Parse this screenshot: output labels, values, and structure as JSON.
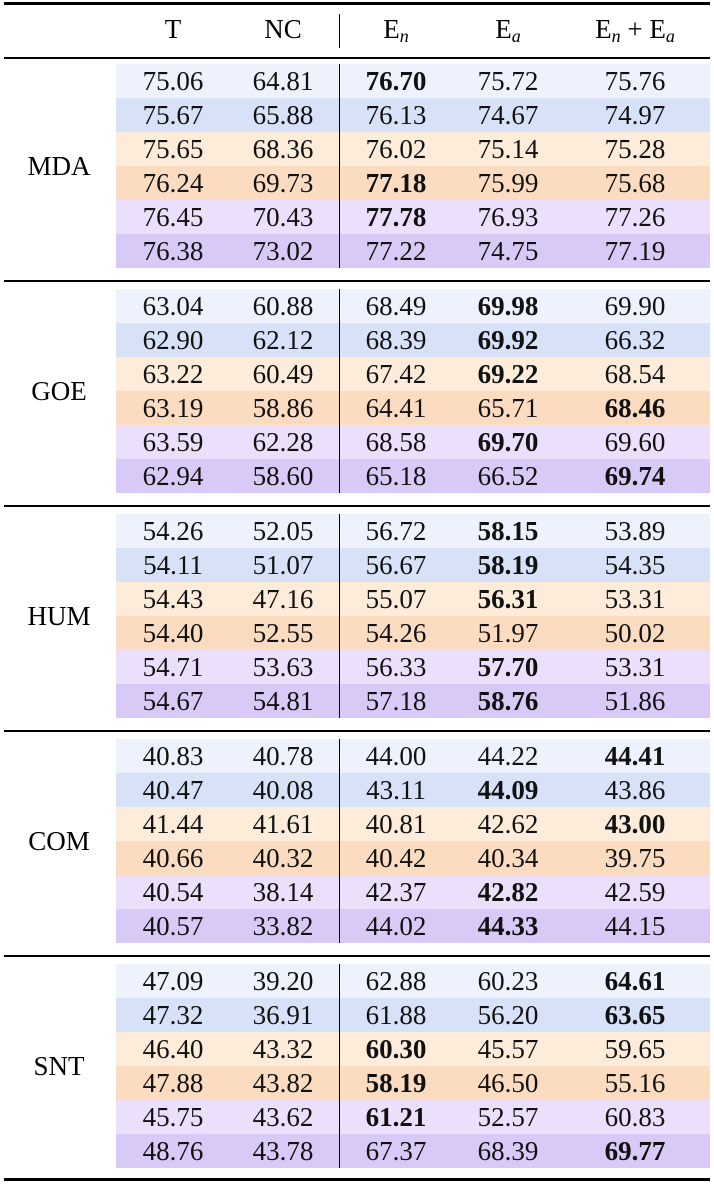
{
  "table": {
    "columns": [
      {
        "text": "T"
      },
      {
        "text": "NC"
      },
      {
        "text": "E",
        "sub": "n"
      },
      {
        "text": "E",
        "sub": "a"
      },
      {
        "text": "E",
        "sub": "n",
        "text2": " + E",
        "sub2": "a"
      }
    ],
    "row_colors": [
      "#eef2fd",
      "#d7e2f9",
      "#fdecda",
      "#fbdcc1",
      "#ecdffb",
      "#d9c9f6"
    ],
    "groups": [
      {
        "label": "MDA",
        "rows": [
          {
            "cells": [
              "75.06",
              "64.81",
              "76.70",
              "75.72",
              "75.76"
            ],
            "bold": [
              2
            ]
          },
          {
            "cells": [
              "75.67",
              "65.88",
              "76.13",
              "74.67",
              "74.97"
            ],
            "bold": []
          },
          {
            "cells": [
              "75.65",
              "68.36",
              "76.02",
              "75.14",
              "75.28"
            ],
            "bold": []
          },
          {
            "cells": [
              "76.24",
              "69.73",
              "77.18",
              "75.99",
              "75.68"
            ],
            "bold": [
              2
            ]
          },
          {
            "cells": [
              "76.45",
              "70.43",
              "77.78",
              "76.93",
              "77.26"
            ],
            "bold": [
              2
            ]
          },
          {
            "cells": [
              "76.38",
              "73.02",
              "77.22",
              "74.75",
              "77.19"
            ],
            "bold": []
          }
        ]
      },
      {
        "label": "GOE",
        "rows": [
          {
            "cells": [
              "63.04",
              "60.88",
              "68.49",
              "69.98",
              "69.90"
            ],
            "bold": [
              3
            ]
          },
          {
            "cells": [
              "62.90",
              "62.12",
              "68.39",
              "69.92",
              "66.32"
            ],
            "bold": [
              3
            ]
          },
          {
            "cells": [
              "63.22",
              "60.49",
              "67.42",
              "69.22",
              "68.54"
            ],
            "bold": [
              3
            ]
          },
          {
            "cells": [
              "63.19",
              "58.86",
              "64.41",
              "65.71",
              "68.46"
            ],
            "bold": [
              4
            ]
          },
          {
            "cells": [
              "63.59",
              "62.28",
              "68.58",
              "69.70",
              "69.60"
            ],
            "bold": [
              3
            ]
          },
          {
            "cells": [
              "62.94",
              "58.60",
              "65.18",
              "66.52",
              "69.74"
            ],
            "bold": [
              4
            ]
          }
        ]
      },
      {
        "label": "HUM",
        "rows": [
          {
            "cells": [
              "54.26",
              "52.05",
              "56.72",
              "58.15",
              "53.89"
            ],
            "bold": [
              3
            ]
          },
          {
            "cells": [
              "54.11",
              "51.07",
              "56.67",
              "58.19",
              "54.35"
            ],
            "bold": [
              3
            ]
          },
          {
            "cells": [
              "54.43",
              "47.16",
              "55.07",
              "56.31",
              "53.31"
            ],
            "bold": [
              3
            ]
          },
          {
            "cells": [
              "54.40",
              "52.55",
              "54.26",
              "51.97",
              "50.02"
            ],
            "bold": []
          },
          {
            "cells": [
              "54.71",
              "53.63",
              "56.33",
              "57.70",
              "53.31"
            ],
            "bold": [
              3
            ]
          },
          {
            "cells": [
              "54.67",
              "54.81",
              "57.18",
              "58.76",
              "51.86"
            ],
            "bold": [
              3
            ]
          }
        ]
      },
      {
        "label": "COM",
        "rows": [
          {
            "cells": [
              "40.83",
              "40.78",
              "44.00",
              "44.22",
              "44.41"
            ],
            "bold": [
              4
            ]
          },
          {
            "cells": [
              "40.47",
              "40.08",
              "43.11",
              "44.09",
              "43.86"
            ],
            "bold": [
              3
            ]
          },
          {
            "cells": [
              "41.44",
              "41.61",
              "40.81",
              "42.62",
              "43.00"
            ],
            "bold": [
              4
            ]
          },
          {
            "cells": [
              "40.66",
              "40.32",
              "40.42",
              "40.34",
              "39.75"
            ],
            "bold": []
          },
          {
            "cells": [
              "40.54",
              "38.14",
              "42.37",
              "42.82",
              "42.59"
            ],
            "bold": [
              3
            ]
          },
          {
            "cells": [
              "40.57",
              "33.82",
              "44.02",
              "44.33",
              "44.15"
            ],
            "bold": [
              3
            ]
          }
        ]
      },
      {
        "label": "SNT",
        "rows": [
          {
            "cells": [
              "47.09",
              "39.20",
              "62.88",
              "60.23",
              "64.61"
            ],
            "bold": [
              4
            ]
          },
          {
            "cells": [
              "47.32",
              "36.91",
              "61.88",
              "56.20",
              "63.65"
            ],
            "bold": [
              4
            ]
          },
          {
            "cells": [
              "46.40",
              "43.32",
              "60.30",
              "45.57",
              "59.65"
            ],
            "bold": [
              2
            ]
          },
          {
            "cells": [
              "47.88",
              "43.82",
              "58.19",
              "46.50",
              "55.16"
            ],
            "bold": [
              2
            ]
          },
          {
            "cells": [
              "45.75",
              "43.62",
              "61.21",
              "52.57",
              "60.83"
            ],
            "bold": [
              2
            ]
          },
          {
            "cells": [
              "48.76",
              "43.78",
              "67.37",
              "68.39",
              "69.77"
            ],
            "bold": [
              4
            ]
          }
        ]
      }
    ]
  }
}
